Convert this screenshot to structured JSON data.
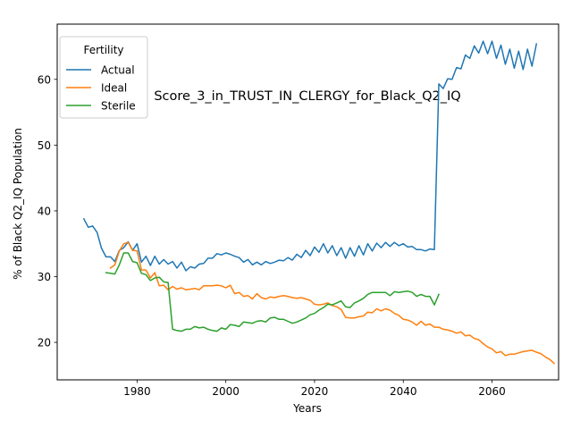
{
  "chart_data": {
    "type": "line",
    "title": "Score_3_in_TRUST_IN_CLERGY_for_Black_Q2_IQ",
    "xlabel": "Years",
    "ylabel": "% of Black Q2_IQ Population",
    "xlim": [
      1962,
      2075
    ],
    "ylim": [
      14.3,
      68.4
    ],
    "xticks": [
      1980,
      2000,
      2020,
      2040,
      2060
    ],
    "yticks": [
      20,
      30,
      40,
      50,
      60
    ],
    "grid": false,
    "legend": {
      "title": "Fertility",
      "placement": "top-left"
    },
    "series": [
      {
        "name": "Actual",
        "color": "#1f77b4",
        "x_start": 1968,
        "values": [
          38.8,
          37.5,
          37.7,
          36.7,
          34.3,
          33.0,
          33.0,
          32.3,
          34.0,
          34.4,
          35.3,
          34.0,
          35.0,
          32.2,
          33.1,
          31.7,
          33.1,
          31.9,
          32.6,
          31.9,
          32.3,
          31.3,
          32.2,
          30.9,
          31.5,
          31.3,
          31.9,
          32.0,
          32.8,
          32.8,
          33.5,
          33.3,
          33.6,
          33.4,
          33.1,
          32.9,
          32.2,
          32.6,
          31.8,
          32.2,
          31.8,
          32.3,
          32.0,
          32.2,
          32.5,
          32.4,
          32.9,
          32.5,
          33.4,
          32.9,
          34.0,
          33.2,
          34.5,
          33.7,
          35.0,
          33.6,
          34.7,
          33.2,
          34.4,
          32.8,
          34.4,
          33.1,
          34.7,
          33.3,
          35.0,
          33.9,
          35.1,
          34.4,
          35.2,
          34.6,
          35.2,
          34.7,
          35.0,
          34.5,
          34.6,
          34.1,
          34.1,
          33.9,
          34.2,
          34.1,
          59.3,
          58.6,
          60.1,
          60.0,
          61.8,
          61.6,
          63.7,
          63.2,
          65.1,
          64.0,
          65.8,
          63.9,
          65.8,
          63.2,
          65.2,
          62.3,
          64.6,
          61.7,
          64.3,
          61.5,
          64.6,
          62.0,
          65.4
        ]
      },
      {
        "name": "Ideal",
        "color": "#ff7f0e",
        "x_start": 1974,
        "values": [
          31.3,
          31.8,
          33.9,
          35.0,
          35.2,
          34.0,
          33.9,
          31.0,
          31.0,
          29.8,
          30.6,
          28.6,
          28.7,
          28.0,
          28.5,
          28.1,
          28.3,
          28.0,
          28.1,
          28.2,
          28.0,
          28.6,
          28.6,
          28.6,
          28.7,
          28.6,
          28.3,
          28.7,
          27.4,
          27.6,
          27.0,
          27.1,
          26.6,
          27.4,
          26.8,
          26.6,
          26.9,
          26.8,
          27.0,
          27.1,
          27.0,
          26.8,
          26.7,
          26.8,
          26.6,
          26.4,
          25.8,
          25.7,
          25.8,
          26.0,
          25.6,
          25.4,
          25.0,
          23.8,
          23.7,
          23.7,
          23.9,
          24.0,
          24.6,
          24.5,
          25.1,
          24.8,
          25.1,
          24.9,
          24.4,
          24.1,
          23.5,
          23.4,
          23.1,
          22.6,
          23.2,
          22.6,
          22.8,
          22.3,
          22.3,
          22.0,
          21.9,
          21.7,
          21.4,
          21.6,
          21.0,
          21.1,
          20.6,
          20.4,
          19.8,
          19.3,
          19.0,
          18.4,
          18.6,
          18.0,
          18.2,
          18.2,
          18.4,
          18.6,
          18.7,
          18.8,
          18.5,
          18.3,
          17.8,
          17.4,
          16.8
        ]
      },
      {
        "name": "Sterile",
        "color": "#2ca02c",
        "x_start": 1973,
        "values": [
          30.6,
          30.5,
          30.4,
          31.8,
          33.6,
          33.6,
          32.3,
          32.1,
          30.5,
          30.3,
          29.4,
          29.8,
          29.9,
          29.2,
          29.1,
          22.0,
          21.8,
          21.7,
          22.0,
          22.0,
          22.4,
          22.2,
          22.3,
          22.0,
          21.8,
          21.7,
          22.2,
          22.0,
          22.7,
          22.6,
          22.4,
          23.1,
          23.0,
          22.9,
          23.2,
          23.3,
          23.1,
          23.7,
          23.8,
          23.5,
          23.5,
          23.2,
          22.9,
          23.1,
          23.4,
          23.7,
          24.2,
          24.4,
          24.9,
          25.3,
          25.8,
          25.7,
          26.0,
          26.3,
          25.4,
          25.3,
          26.0,
          26.3,
          26.7,
          27.3,
          27.6,
          27.6,
          27.6,
          27.6,
          27.1,
          27.7,
          27.6,
          27.7,
          27.8,
          27.6,
          27.0,
          27.3,
          27.0,
          27.0,
          25.7,
          27.3
        ]
      }
    ]
  }
}
